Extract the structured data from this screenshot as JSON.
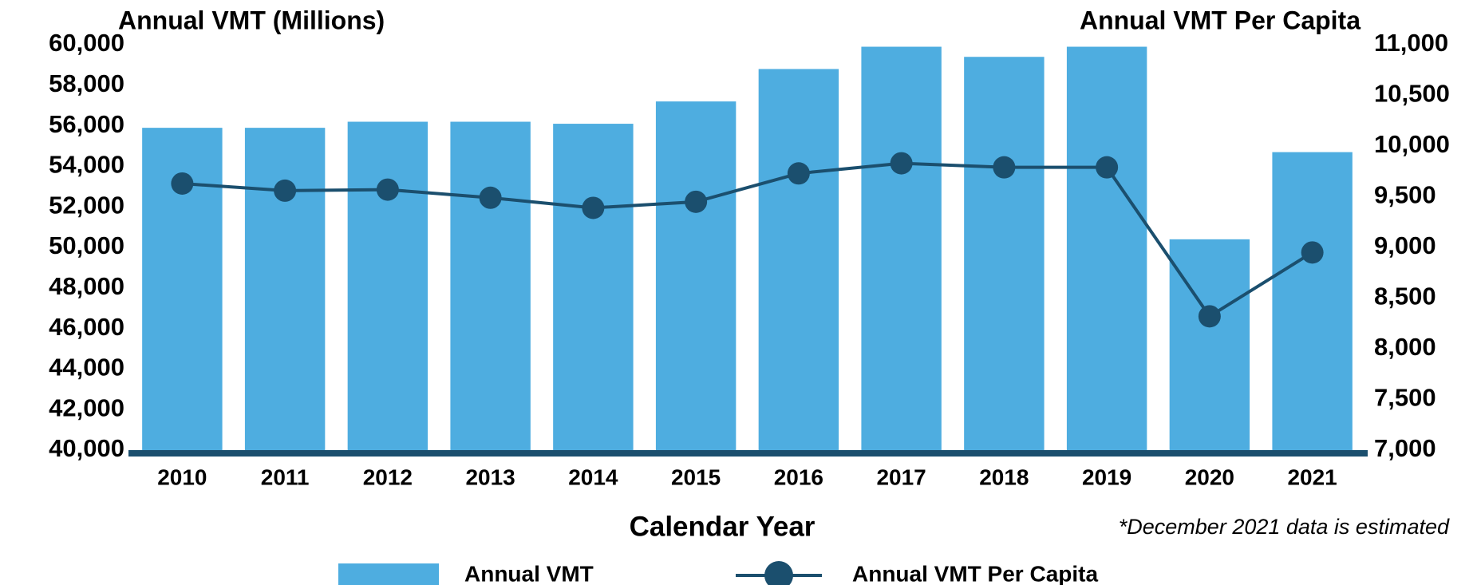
{
  "chart_data": {
    "type": "bar-line",
    "title": "Annual VMT (Millions)",
    "y2_title": "Annual VMT Per Capita",
    "x_label": "Calendar Year",
    "annotation": "*December 2021 data is estimated",
    "categories": [
      "2010",
      "2011",
      "2012",
      "2013",
      "2014",
      "2015",
      "2016",
      "2017",
      "2018",
      "2019",
      "2020",
      "2021"
    ],
    "series": [
      {
        "name": "Annual VMT",
        "type": "bar",
        "color": "#4eade0",
        "values": [
          55900,
          55900,
          56200,
          56200,
          56100,
          57200,
          58800,
          59900,
          59400,
          59900,
          50400,
          54700
        ]
      },
      {
        "name": "Annual VMT Per Capita",
        "type": "line",
        "axis": "y2",
        "color": "#1b4f6e",
        "values": [
          9630,
          9560,
          9570,
          9490,
          9390,
          9450,
          9730,
          9830,
          9790,
          9790,
          8320,
          8950
        ]
      }
    ],
    "ylim": [
      40000,
      60000
    ],
    "yticks": [
      {
        "value": 40000,
        "label": "40,000"
      },
      {
        "value": 42000,
        "label": "42,000"
      },
      {
        "value": 44000,
        "label": "44,000"
      },
      {
        "value": 46000,
        "label": "46,000"
      },
      {
        "value": 48000,
        "label": "48,000"
      },
      {
        "value": 50000,
        "label": "50,000"
      },
      {
        "value": 52000,
        "label": "52,000"
      },
      {
        "value": 54000,
        "label": "54,000"
      },
      {
        "value": 56000,
        "label": "56,000"
      },
      {
        "value": 58000,
        "label": "58,000"
      },
      {
        "value": 60000,
        "label": "60,000"
      }
    ],
    "y2lim": [
      7000,
      11000
    ],
    "y2ticks": [
      {
        "value": 7000,
        "label": "7,000"
      },
      {
        "value": 7500,
        "label": "7,500"
      },
      {
        "value": 8000,
        "label": "8,000"
      },
      {
        "value": 8500,
        "label": "8,500"
      },
      {
        "value": 9000,
        "label": "9,000"
      },
      {
        "value": 9500,
        "label": "9,500"
      },
      {
        "value": 10000,
        "label": "10,000"
      },
      {
        "value": 10500,
        "label": "10,500"
      },
      {
        "value": 11000,
        "label": "11,000"
      }
    ],
    "grid": false
  }
}
